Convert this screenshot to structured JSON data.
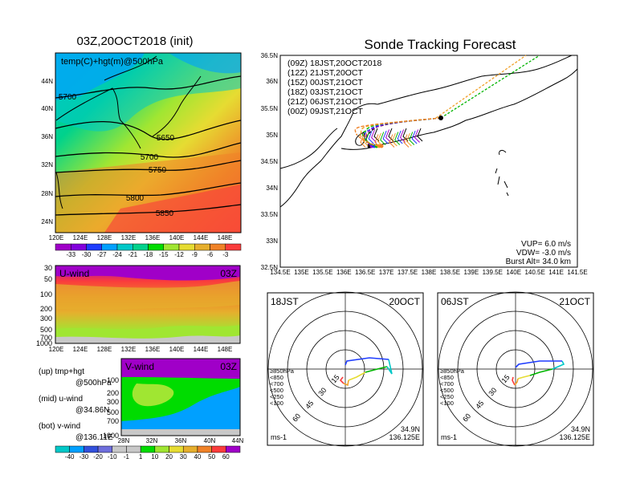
{
  "main_title": "Sonde Tracking Forecast",
  "left_title": "03Z,20OCT2018 (init)",
  "map500": {
    "label": "temp(C)+hgt(m)@500hPa",
    "lat_ticks": [
      "44N",
      "40N",
      "36N",
      "32N",
      "28N",
      "24N"
    ],
    "lon_ticks": [
      "120E",
      "124E",
      "128E",
      "132E",
      "136E",
      "140E",
      "144E",
      "148E"
    ],
    "contours": [
      "5700",
      "5650",
      "5700",
      "5750",
      "5800",
      "5850"
    ]
  },
  "temp_colorbar": {
    "labels": [
      "-33",
      "-30",
      "-27",
      "-24",
      "-21",
      "-18",
      "-15",
      "-12",
      "-9",
      "-6",
      "-3"
    ],
    "colors": [
      "#a000c8",
      "#8200dc",
      "#1e3cff",
      "#00a0ff",
      "#00c8c8",
      "#00d28c",
      "#00dc00",
      "#a0e632",
      "#e6dc32",
      "#e6af2d",
      "#f08228",
      "#fa3c3c"
    ]
  },
  "uwind": {
    "label": "U-wind",
    "time": "03Z",
    "p_ticks": [
      "30",
      "50",
      "100",
      "200",
      "300",
      "500",
      "700",
      "1000"
    ],
    "lon_ticks": [
      "120E",
      "124E",
      "128E",
      "132E",
      "136E",
      "140E",
      "144E",
      "148E"
    ]
  },
  "vwind": {
    "label": "V-wind",
    "time": "03Z",
    "p_ticks": [
      "100",
      "200",
      "300",
      "500",
      "700",
      "1000"
    ],
    "lat_ticks": [
      "28N",
      "32N",
      "36N",
      "40N",
      "44N"
    ]
  },
  "legend_notes": [
    "(up)  tmp+hgt",
    "@500hPa",
    "(mid)  u-wind",
    "@34.86N",
    "(bot)  v-wind",
    "@136.11E"
  ],
  "wind_colorbar": {
    "labels": [
      "-40",
      "-30",
      "-20",
      "-10",
      "-1",
      "1",
      "10",
      "20",
      "30",
      "40",
      "50",
      "60"
    ],
    "colors": [
      "#00c8c8",
      "#00a0ff",
      "#3250dc",
      "#6e6edc",
      "#c8c8c8",
      "#c8c8c8",
      "#00dc00",
      "#a0e632",
      "#e6dc32",
      "#e6af2d",
      "#f08228",
      "#fa3c3c",
      "#a000c8"
    ]
  },
  "track_map": {
    "lat_ticks": [
      "36.5N",
      "36N",
      "35.5N",
      "35N",
      "34.5N",
      "34N",
      "33.5N",
      "33N",
      "32.5N"
    ],
    "lon_ticks": [
      "134.5E",
      "135E",
      "135.5E",
      "136E",
      "136.5E",
      "137E",
      "137.5E",
      "138E",
      "138.5E",
      "139E",
      "139.5E",
      "140E",
      "140.5E",
      "141E",
      "141.5E"
    ],
    "launches": [
      {
        "label": "(09Z)  18JST,20OCT2018",
        "color": "#000000"
      },
      {
        "label": "(12Z)  21JST,20OCT",
        "color": "#a000c8"
      },
      {
        "label": "(15Z)  00JST,21OCT",
        "color": "#1e3cff"
      },
      {
        "label": "(18Z)  03JST,21OCT",
        "color": "#00b400"
      },
      {
        "label": "(21Z)  06JST,21OCT",
        "color": "#f0a028"
      },
      {
        "label": "(00Z)  09JST,21OCT",
        "color": "#f08228"
      }
    ],
    "params": [
      "VUP=  6.0  m/s",
      "VDW=  -3.0  m/s",
      "Burst Alt=  34.0  km"
    ]
  },
  "hodo_left": {
    "time": "18JST",
    "date": "20OCT",
    "rings": [
      "15",
      "30",
      "45",
      "60"
    ],
    "levels": [
      "≥850hPa",
      "<850",
      "<700",
      "<500",
      "<250",
      "<100"
    ],
    "level_colors": [
      "#fa3c3c",
      "#f0a028",
      "#e6dc32",
      "#00b400",
      "#00c8c8",
      "#1e3cff"
    ],
    "unit": "ms-1",
    "loc_lat": "34.9N",
    "loc_lon": "136.125E"
  },
  "hodo_right": {
    "time": "06JST",
    "date": "21OCT",
    "rings": [
      "15",
      "30",
      "45",
      "60"
    ],
    "levels": [
      "≥850hPa",
      "<850",
      "<700",
      "<500",
      "<250",
      "<100"
    ],
    "level_colors": [
      "#fa3c3c",
      "#f0a028",
      "#e6dc32",
      "#00b400",
      "#00c8c8",
      "#1e3cff"
    ],
    "unit": "ms-1",
    "loc_lat": "34.9N",
    "loc_lon": "136.125E"
  },
  "chart_data": [
    {
      "type": "heatmap",
      "title": "03Z,20OCT2018 (init)",
      "label": "temp(C)+hgt(m)@500hPa",
      "x_ticks": [
        "120E",
        "124E",
        "128E",
        "132E",
        "136E",
        "140E",
        "144E",
        "148E"
      ],
      "y_ticks": [
        "44N",
        "40N",
        "36N",
        "32N",
        "28N",
        "24N"
      ],
      "colorbar": [
        -33,
        -30,
        -27,
        -24,
        -21,
        -18,
        -15,
        -12,
        -9,
        -6,
        -3
      ],
      "contour_labels": [
        5700,
        5650,
        5700,
        5750,
        5800,
        5850
      ]
    },
    {
      "type": "heatmap",
      "title": "U-wind",
      "y_ticks": [
        30,
        50,
        100,
        200,
        300,
        500,
        700,
        1000
      ]
    },
    {
      "type": "heatmap",
      "title": "V-wind",
      "y_ticks": [
        100,
        200,
        300,
        500,
        700,
        1000
      ]
    },
    {
      "type": "line",
      "title": "Sonde Tracking Forecast",
      "burst_alt_km": 34.0,
      "vup_ms": 6.0,
      "vdw_ms": -3.0
    },
    {
      "type": "line",
      "title": "hodograph 18JST 20OCT",
      "rings_ms": [
        15,
        30,
        45,
        60
      ]
    },
    {
      "type": "line",
      "title": "hodograph 06JST 21OCT",
      "rings_ms": [
        15,
        30,
        45,
        60
      ]
    }
  ]
}
